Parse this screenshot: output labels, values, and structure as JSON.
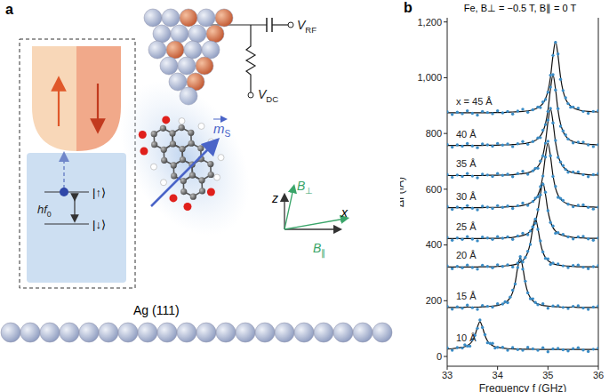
{
  "diagram": {
    "panel_label": "a",
    "energy": {
      "main": "hf",
      "sub": "0"
    },
    "levels": [
      "|↑⟩",
      "|↓⟩"
    ],
    "rf_source": {
      "main": "V",
      "sub": "RF"
    },
    "dc_source": {
      "main": "V",
      "sub": "DC"
    },
    "spin": {
      "main": "m",
      "sub": "S"
    },
    "axes": {
      "z": "z",
      "x": "x"
    },
    "fields": [
      {
        "main": "B",
        "sub": "⊥"
      },
      {
        "main": "B",
        "sub": "∥"
      }
    ],
    "substrate": "Ag (111)"
  },
  "chart_data": {
    "type": "line",
    "panel_label": "b",
    "title": "Fe, B⊥ = −0.5 T, B∥ = 0 T",
    "xlabel": "Frequency f (GHz)",
    "ylabel": "ΔI (fA)",
    "xlim": [
      33,
      36
    ],
    "xticks": [
      33,
      34,
      35,
      36
    ],
    "ylim": [
      -35,
      1215
    ],
    "yticks": [
      0,
      200,
      400,
      600,
      800,
      {
        "value": 1000,
        "label": "1,000"
      },
      {
        "value": 1200,
        "label": "1,200"
      }
    ],
    "marker": "circle",
    "series": [
      {
        "name": "10 Å",
        "color": "#3a8cc6",
        "x": [
          33.0,
          33.1,
          33.2,
          33.3,
          33.35,
          33.4,
          33.45,
          33.5,
          33.55,
          33.6,
          33.65,
          33.7,
          33.75,
          33.8,
          33.85,
          33.9,
          33.95,
          34.0,
          34.1,
          34.2,
          34.3,
          34.4,
          34.5,
          34.6,
          34.7,
          34.8,
          34.9,
          35.0,
          35.1,
          35.2,
          35.3,
          35.4,
          35.5,
          35.6,
          35.7,
          35.8,
          35.9,
          36.0
        ],
        "values": [
          31,
          22,
          32,
          30,
          42,
          37,
          37,
          61,
          76,
          101,
          131,
          104,
          78,
          49,
          47,
          47,
          30,
          33,
          33,
          22,
          32,
          25,
          22,
          33,
          27,
          22,
          31,
          17,
          27,
          29,
          24,
          20,
          28,
          31,
          23,
          18,
          26,
          30
        ],
        "fit": [
          27,
          28,
          30,
          33,
          35,
          39,
          45,
          56,
          75,
          105,
          125,
          105,
          75,
          56,
          45,
          39,
          35,
          33,
          30,
          28,
          27,
          27,
          26,
          26,
          26,
          25,
          25,
          25,
          25,
          25,
          25,
          25,
          25,
          25,
          25,
          25,
          25,
          25
        ]
      },
      {
        "name": "15 Å",
        "color": "#3a8cc6",
        "x": [
          33.0,
          33.1,
          33.2,
          33.3,
          33.4,
          33.5,
          33.6,
          33.7,
          33.8,
          33.9,
          34.0,
          34.1,
          34.15,
          34.2,
          34.25,
          34.3,
          34.35,
          34.4,
          34.45,
          34.5,
          34.55,
          34.6,
          34.65,
          34.7,
          34.75,
          34.8,
          34.9,
          35.0,
          35.1,
          35.2,
          35.3,
          35.4,
          35.5,
          35.6,
          35.7,
          35.8,
          35.9,
          36.0
        ],
        "values": [
          180,
          170,
          178,
          173,
          184,
          175,
          169,
          183,
          180,
          177,
          189,
          188,
          196,
          193,
          213,
          238,
          260,
          319,
          358,
          313,
          270,
          228,
          207,
          207,
          194,
          186,
          189,
          173,
          181,
          182,
          176,
          172,
          180,
          182,
          174,
          169,
          177,
          181
        ],
        "fit": [
          176,
          176,
          176,
          176,
          177,
          177,
          177,
          178,
          179,
          181,
          183,
          189,
          193,
          200,
          211,
          230,
          265,
          319,
          355,
          319,
          265,
          230,
          211,
          200,
          193,
          189,
          183,
          181,
          179,
          178,
          177,
          177,
          177,
          176,
          176,
          176,
          176,
          176
        ]
      },
      {
        "name": "20 Å",
        "color": "#3a8cc6",
        "x": [
          33.0,
          33.1,
          33.2,
          33.3,
          33.4,
          33.5,
          33.6,
          33.7,
          33.8,
          33.9,
          34.0,
          34.1,
          34.2,
          34.3,
          34.4,
          34.45,
          34.5,
          34.55,
          34.6,
          34.65,
          34.7,
          34.75,
          34.8,
          34.85,
          34.9,
          34.95,
          35.0,
          35.05,
          35.1,
          35.2,
          35.3,
          35.4,
          35.5,
          35.6,
          35.7,
          35.8,
          35.9,
          36.0
        ],
        "values": [
          325,
          315,
          323,
          318,
          328,
          319,
          313,
          327,
          323,
          318,
          329,
          323,
          329,
          321,
          335,
          346,
          339,
          355,
          377,
          402,
          465,
          493,
          456,
          415,
          375,
          352,
          350,
          330,
          335,
          332,
          325,
          319,
          326,
          328,
          320,
          315,
          322,
          326
        ],
        "fit": [
          321,
          321,
          321,
          321,
          321,
          321,
          321,
          322,
          322,
          322,
          323,
          324,
          326,
          328,
          333,
          338,
          344,
          355,
          374,
          408,
          460,
          495,
          460,
          408,
          374,
          355,
          344,
          338,
          333,
          328,
          326,
          324,
          323,
          322,
          322,
          322,
          321,
          321
        ]
      },
      {
        "name": "25 Å",
        "color": "#3a8cc6",
        "x": [
          33.0,
          33.1,
          33.2,
          33.3,
          33.4,
          33.5,
          33.6,
          33.7,
          33.8,
          33.9,
          34.0,
          34.1,
          34.2,
          34.3,
          34.4,
          34.5,
          34.6,
          34.65,
          34.7,
          34.75,
          34.8,
          34.85,
          34.9,
          34.95,
          35.0,
          35.05,
          35.1,
          35.15,
          35.2,
          35.3,
          35.4,
          35.5,
          35.6,
          35.7,
          35.8,
          35.9,
          36.0
        ],
        "values": [
          427,
          417,
          425,
          420,
          430,
          421,
          415,
          428,
          425,
          420,
          430,
          424,
          429,
          420,
          432,
          442,
          437,
          450,
          465,
          478,
          527,
          580,
          618,
          589,
          523,
          481,
          468,
          442,
          444,
          438,
          429,
          422,
          429,
          431,
          422,
          417,
          425
        ],
        "fit": [
          423,
          423,
          423,
          423,
          423,
          423,
          423,
          423,
          424,
          424,
          424,
          425,
          426,
          427,
          430,
          434,
          442,
          450,
          462,
          484,
          522,
          582,
          622,
          582,
          522,
          484,
          462,
          450,
          442,
          434,
          430,
          427,
          426,
          425,
          424,
          424,
          424
        ]
      },
      {
        "name": "30 Å",
        "color": "#3a8cc6",
        "x": [
          33.0,
          33.1,
          33.2,
          33.3,
          33.4,
          33.5,
          33.6,
          33.7,
          33.8,
          33.9,
          34.0,
          34.1,
          34.2,
          34.3,
          34.4,
          34.5,
          34.6,
          34.7,
          34.75,
          34.8,
          34.85,
          34.9,
          34.95,
          35.0,
          35.05,
          35.1,
          35.15,
          35.2,
          35.25,
          35.3,
          35.4,
          35.5,
          35.6,
          35.7,
          35.8,
          35.9,
          36.0
        ],
        "values": [
          538,
          528,
          536,
          531,
          541,
          532,
          526,
          539,
          536,
          531,
          541,
          535,
          540,
          531,
          541,
          550,
          542,
          556,
          568,
          573,
          609,
          647,
          715,
          772,
          720,
          646,
          610,
          571,
          567,
          560,
          546,
          537,
          542,
          544,
          535,
          529,
          536
        ],
        "fit": [
          534,
          534,
          534,
          534,
          534,
          534,
          534,
          534,
          535,
          535,
          535,
          536,
          537,
          538,
          539,
          542,
          547,
          556,
          565,
          579,
          604,
          649,
          719,
          765,
          719,
          649,
          604,
          579,
          565,
          556,
          547,
          542,
          539,
          538,
          537,
          536,
          535
        ]
      },
      {
        "name": "35 Å",
        "color": "#3a8cc6",
        "x": [
          33.0,
          33.1,
          33.2,
          33.3,
          33.4,
          33.5,
          33.6,
          33.7,
          33.8,
          33.9,
          34.0,
          34.1,
          34.2,
          34.3,
          34.4,
          34.5,
          34.6,
          34.7,
          34.75,
          34.8,
          34.85,
          34.9,
          34.95,
          35.0,
          35.05,
          35.1,
          35.15,
          35.2,
          35.25,
          35.3,
          35.35,
          35.4,
          35.5,
          35.6,
          35.7,
          35.8,
          35.9,
          36.0
        ],
        "values": [
          653,
          643,
          651,
          646,
          656,
          647,
          641,
          654,
          651,
          646,
          656,
          650,
          654,
          645,
          656,
          664,
          654,
          666,
          675,
          675,
          701,
          720,
          765,
          848,
          890,
          838,
          775,
          714,
          698,
          685,
          671,
          661,
          662,
          662,
          652,
          645,
          652,
          656
        ],
        "fit": [
          649,
          649,
          649,
          649,
          649,
          649,
          649,
          649,
          650,
          650,
          650,
          651,
          651,
          652,
          654,
          656,
          659,
          666,
          672,
          681,
          696,
          722,
          769,
          841,
          889,
          841,
          769,
          722,
          696,
          681,
          672,
          666,
          659,
          656,
          654,
          652,
          651,
          651
        ]
      },
      {
        "name": "40 Å",
        "color": "#3a8cc6",
        "x": [
          33.0,
          33.1,
          33.2,
          33.3,
          33.4,
          33.5,
          33.6,
          33.7,
          33.8,
          33.9,
          34.0,
          34.1,
          34.2,
          34.3,
          34.4,
          34.5,
          34.6,
          34.7,
          34.8,
          34.85,
          34.9,
          34.95,
          35.0,
          35.05,
          35.1,
          35.15,
          35.2,
          35.25,
          35.3,
          35.35,
          35.4,
          35.5,
          35.6,
          35.7,
          35.8,
          35.9,
          36.0
        ],
        "values": [
          761,
          751,
          759,
          754,
          764,
          755,
          749,
          762,
          759,
          754,
          764,
          758,
          762,
          753,
          763,
          771,
          761,
          771,
          784,
          785,
          812,
          832,
          879,
          966,
          1011,
          956,
          889,
          826,
          809,
          795,
          780,
          766,
          769,
          769,
          759,
          753,
          760
        ],
        "fit": [
          757,
          757,
          757,
          757,
          757,
          757,
          757,
          757,
          758,
          758,
          758,
          759,
          759,
          760,
          761,
          763,
          766,
          771,
          781,
          791,
          807,
          834,
          883,
          959,
          1010,
          959,
          883,
          834,
          807,
          791,
          781,
          771,
          766,
          763,
          761,
          760,
          759
        ]
      },
      {
        "name": "x = 45 Å",
        "color": "#3a8cc6",
        "x": [
          33.0,
          33.1,
          33.2,
          33.3,
          33.4,
          33.5,
          33.6,
          33.7,
          33.8,
          33.9,
          34.0,
          34.1,
          34.2,
          34.3,
          34.4,
          34.5,
          34.6,
          34.7,
          34.8,
          34.85,
          34.9,
          34.95,
          35.0,
          35.05,
          35.1,
          35.15,
          35.2,
          35.25,
          35.3,
          35.35,
          35.4,
          35.45,
          35.5,
          35.6,
          35.7,
          35.8,
          35.9,
          36.0
        ],
        "values": [
          878,
          868,
          876,
          871,
          881,
          872,
          866,
          879,
          875,
          871,
          881,
          874,
          879,
          870,
          880,
          887,
          876,
          885,
          895,
          893,
          913,
          922,
          948,
          1009,
          1080,
          1127,
          1085,
          994,
          954,
          928,
          907,
          894,
          895,
          891,
          879,
          872,
          879,
          882
        ],
        "fit": [
          874,
          874,
          874,
          874,
          874,
          874,
          874,
          874,
          874,
          875,
          875,
          875,
          876,
          877,
          878,
          879,
          881,
          885,
          892,
          899,
          908,
          924,
          952,
          1002,
          1079,
          1130,
          1079,
          1002,
          952,
          924,
          908,
          899,
          892,
          885,
          881,
          879,
          878,
          877
        ]
      }
    ]
  }
}
